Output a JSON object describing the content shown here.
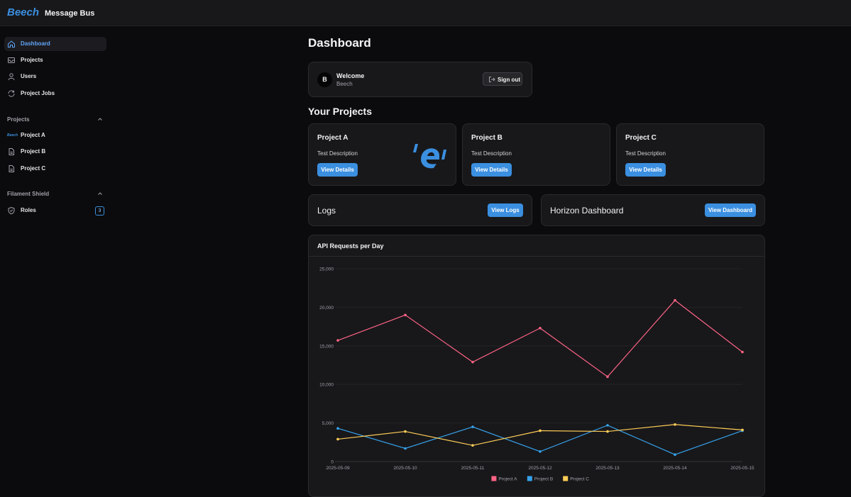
{
  "header": {
    "brand": "Beech",
    "title": "Message Bus"
  },
  "sidebar": {
    "nav": [
      "Dashboard",
      "Projects",
      "Users",
      "Project Jobs"
    ],
    "groups": [
      {
        "label": "Projects",
        "items": [
          {
            "label": "Project A",
            "logo": "Beech"
          },
          {
            "label": "Project B"
          },
          {
            "label": "Project C"
          }
        ]
      },
      {
        "label": "Filament Shield",
        "items": [
          {
            "label": "Roles",
            "badge": 3
          }
        ]
      }
    ]
  },
  "page": {
    "heading": "Dashboard",
    "welcome": {
      "avatar": "B",
      "title": "Welcome",
      "name": "Beech",
      "button": "Sign out"
    },
    "projects_heading": "Your Projects",
    "projects": [
      {
        "name": "Project A",
        "description": "Test Description",
        "button": "View Details"
      },
      {
        "name": "Project B",
        "description": "Test Description",
        "button": "View Details"
      },
      {
        "name": "Project C",
        "description": "Test Description",
        "button": "View Details"
      }
    ],
    "links": [
      {
        "label": "Logs",
        "button": "View Logs"
      },
      {
        "label": "Horizon Dashboard",
        "button": "View Dashboard"
      }
    ]
  },
  "chart_data": {
    "type": "line",
    "title": "API Requests per Day",
    "x": [
      "2025-05-09",
      "2025-05-10",
      "2025-05-11",
      "2025-05-12",
      "2025-05-13",
      "2025-05-14",
      "2025-05-15"
    ],
    "series": [
      {
        "name": "Project A",
        "color": "#ff6384",
        "values": [
          15700,
          19000,
          12900,
          17300,
          11000,
          20900,
          14200
        ]
      },
      {
        "name": "Project B",
        "color": "#36a2eb",
        "values": [
          4300,
          1700,
          4500,
          1300,
          4700,
          900,
          4000
        ]
      },
      {
        "name": "Project C",
        "color": "#ffcd56",
        "values": [
          2900,
          3900,
          2100,
          4000,
          3900,
          4800,
          4100
        ]
      }
    ],
    "ylim": [
      0,
      25000
    ],
    "yticks": [
      0,
      {
        "value": 5000,
        "label": "5,000"
      },
      {
        "value": 10000,
        "label": "10,000"
      },
      {
        "value": 15000,
        "label": "15,000"
      },
      {
        "value": 20000,
        "label": "20,000"
      },
      {
        "value": 25000,
        "label": "25,000"
      }
    ],
    "grid": true,
    "legend": "bottom"
  }
}
